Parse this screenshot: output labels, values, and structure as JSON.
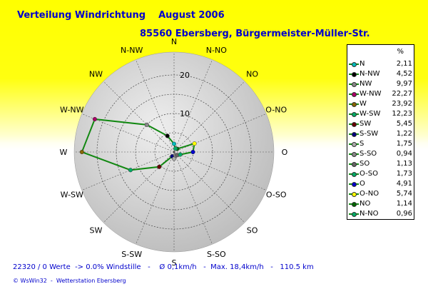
{
  "header": {
    "title": "Verteilung Windrichtung",
    "period": "August 2006",
    "station": "85560 Ebersberg, Bürgermeister-Müller-Str."
  },
  "chart_data": {
    "type": "radar",
    "directions": [
      "N",
      "N-NW",
      "NW",
      "W-NW",
      "W",
      "W-SW",
      "SW",
      "S-SW",
      "S",
      "S-SO",
      "SO",
      "O-SO",
      "O",
      "O-NO",
      "NO",
      "N-NO"
    ],
    "values": [
      2.11,
      4.52,
      9.97,
      22.27,
      23.92,
      12.23,
      5.45,
      1.22,
      1.75,
      0.94,
      1.13,
      1.73,
      4.91,
      5.74,
      1.14,
      0.96
    ],
    "radial_ticks": [
      "10",
      "20"
    ],
    "rmax": 25,
    "legend_unit": "%",
    "legend_colors": [
      "#00bbbb",
      "#000000",
      "#888888",
      "#aa0066",
      "#886600",
      "#00aa66",
      "#660000",
      "#000080",
      "#aaaaaa",
      "#888888",
      "#666666",
      "#00aa66",
      "#0000cc",
      "#ffff00",
      "#006600",
      "#00aa66"
    ],
    "line_color": "#118811"
  },
  "footer": {
    "stats": "22320 / 0 Werte  -> 0.0% Windstille   -    Ø 0,1km/h   -  Max. 18,4km/h   -   110.5 km",
    "credit": "© WsWin32  -  Wetterstation Ebersberg"
  }
}
